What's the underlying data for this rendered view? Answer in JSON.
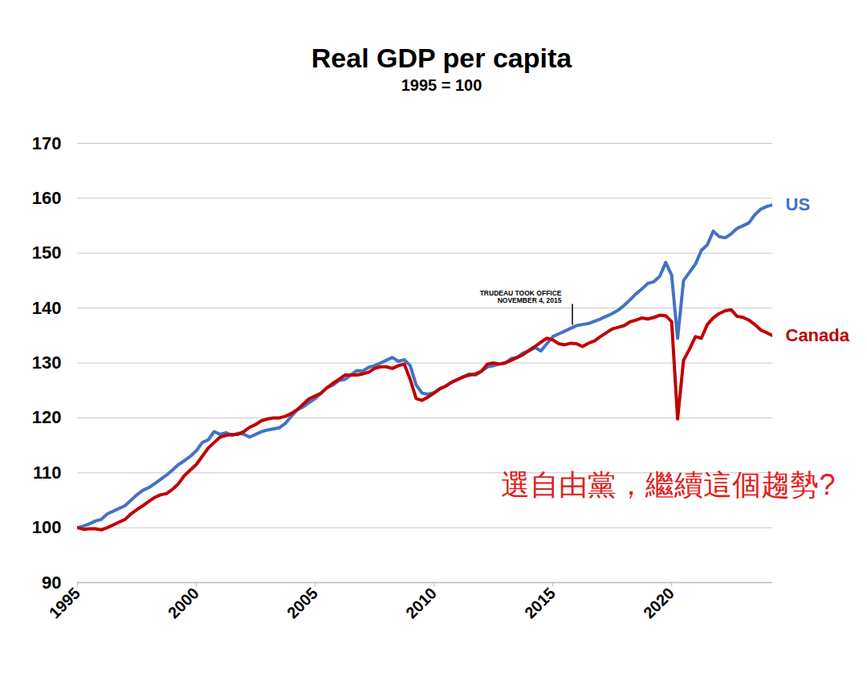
{
  "chart_data": {
    "type": "line",
    "title": "Real GDP per capita",
    "subtitle": "1995 = 100",
    "x": [
      1995,
      1995.25,
      1995.5,
      1995.75,
      1996,
      1996.25,
      1996.5,
      1996.75,
      1997,
      1997.25,
      1997.5,
      1997.75,
      1998,
      1998.25,
      1998.5,
      1998.75,
      1999,
      1999.25,
      1999.5,
      1999.75,
      2000,
      2000.25,
      2000.5,
      2000.75,
      2001,
      2001.25,
      2001.5,
      2001.75,
      2002,
      2002.25,
      2002.5,
      2002.75,
      2003,
      2003.25,
      2003.5,
      2003.75,
      2004,
      2004.25,
      2004.5,
      2004.75,
      2005,
      2005.25,
      2005.5,
      2005.75,
      2006,
      2006.25,
      2006.5,
      2006.75,
      2007,
      2007.25,
      2007.5,
      2007.75,
      2008,
      2008.25,
      2008.5,
      2008.75,
      2009,
      2009.25,
      2009.5,
      2009.75,
      2010,
      2010.25,
      2010.5,
      2010.75,
      2011,
      2011.25,
      2011.5,
      2011.75,
      2012,
      2012.25,
      2012.5,
      2012.75,
      2013,
      2013.25,
      2013.5,
      2013.75,
      2014,
      2014.25,
      2014.5,
      2014.75,
      2015,
      2015.25,
      2015.5,
      2015.75,
      2016,
      2016.25,
      2016.5,
      2016.75,
      2017,
      2017.25,
      2017.5,
      2017.75,
      2018,
      2018.25,
      2018.5,
      2018.75,
      2019,
      2019.25,
      2019.5,
      2019.75,
      2020,
      2020.25,
      2020.5,
      2020.75,
      2021,
      2021.25,
      2021.5,
      2021.75,
      2022,
      2022.25,
      2022.5,
      2022.75,
      2023,
      2023.25,
      2023.5,
      2023.75,
      2024,
      2024.25
    ],
    "xlim": [
      1995,
      2024.25
    ],
    "xticks": [
      1995,
      2000,
      2005,
      2010,
      2015,
      2020
    ],
    "ylim": [
      90,
      170
    ],
    "yticks": [
      90,
      100,
      110,
      120,
      130,
      140,
      150,
      160,
      170
    ],
    "grid": true,
    "series": [
      {
        "name": "US",
        "color": "#4472c4",
        "values": [
          100,
          100.3,
          100.7,
          101.2,
          101.5,
          102.5,
          103.0,
          103.5,
          104.0,
          105.0,
          106.0,
          106.8,
          107.3,
          108.0,
          108.8,
          109.6,
          110.5,
          111.5,
          112.2,
          113.0,
          114.0,
          115.5,
          116.0,
          117.5,
          117.0,
          117.3,
          116.8,
          117.2,
          117.0,
          116.5,
          117.0,
          117.5,
          117.8,
          118.0,
          118.2,
          119.0,
          120.3,
          121.5,
          122.0,
          122.8,
          123.5,
          124.5,
          125.5,
          126.0,
          126.8,
          127.0,
          127.8,
          128.6,
          128.5,
          129.2,
          129.5,
          130.0,
          130.5,
          131.0,
          130.3,
          130.6,
          129.5,
          126.0,
          124.5,
          124.3,
          124.6,
          125.3,
          125.8,
          126.5,
          127.0,
          127.5,
          128.0,
          127.8,
          128.5,
          129.3,
          129.5,
          129.8,
          130.0,
          130.8,
          131.0,
          131.8,
          132.2,
          132.8,
          132.2,
          133.5,
          134.8,
          135.3,
          135.8,
          136.3,
          136.8,
          137.0,
          137.2,
          137.6,
          138.0,
          138.5,
          139.0,
          139.6,
          140.5,
          141.5,
          142.6,
          143.5,
          144.5,
          144.8,
          145.8,
          148.3,
          146.0,
          134.5,
          145.0,
          146.5,
          148.0,
          150.5,
          151.5,
          154.0,
          153.0,
          152.8,
          153.5,
          154.5,
          155.0,
          155.5,
          157.0,
          158.0,
          158.5,
          158.8
        ]
      },
      {
        "name": "Canada",
        "color": "#c00000",
        "values": [
          100,
          99.7,
          99.8,
          99.8,
          99.6,
          100.0,
          100.5,
          101.0,
          101.5,
          102.5,
          103.3,
          104.0,
          104.8,
          105.5,
          106.0,
          106.2,
          107.0,
          108.0,
          109.5,
          110.5,
          111.5,
          113.0,
          114.5,
          115.5,
          116.5,
          116.8,
          117.0,
          117.0,
          117.5,
          118.3,
          118.8,
          119.5,
          119.8,
          120.0,
          120.0,
          120.3,
          120.8,
          121.5,
          122.5,
          123.5,
          124.0,
          124.5,
          125.5,
          126.3,
          127.0,
          127.8,
          127.8,
          127.8,
          128.0,
          128.3,
          129.0,
          129.3,
          129.3,
          129.0,
          129.5,
          129.8,
          127.0,
          123.5,
          123.2,
          123.8,
          124.5,
          125.3,
          125.8,
          126.5,
          127.0,
          127.5,
          127.8,
          128.0,
          128.5,
          129.8,
          130.0,
          129.8,
          130.0,
          130.5,
          131.0,
          131.5,
          132.3,
          133.0,
          133.8,
          134.5,
          134.2,
          133.5,
          133.3,
          133.6,
          133.5,
          133.0,
          133.6,
          134.0,
          134.8,
          135.5,
          136.2,
          136.5,
          136.8,
          137.5,
          137.8,
          138.2,
          138.0,
          138.3,
          138.7,
          138.6,
          137.5,
          119.8,
          130.5,
          132.5,
          134.8,
          134.5,
          137.0,
          138.2,
          139.0,
          139.5,
          139.7,
          138.5,
          138.3,
          137.8,
          137.0,
          136.0,
          135.5,
          135.0
        ]
      }
    ],
    "annotations": [
      {
        "text": "TRUDEAU TOOK OFFICE\nNOVEMBER 4, 2015",
        "x": 2015.84
      },
      {
        "text": "選自由黨，繼續這個趨勢?",
        "color": "#e02020"
      }
    ]
  }
}
